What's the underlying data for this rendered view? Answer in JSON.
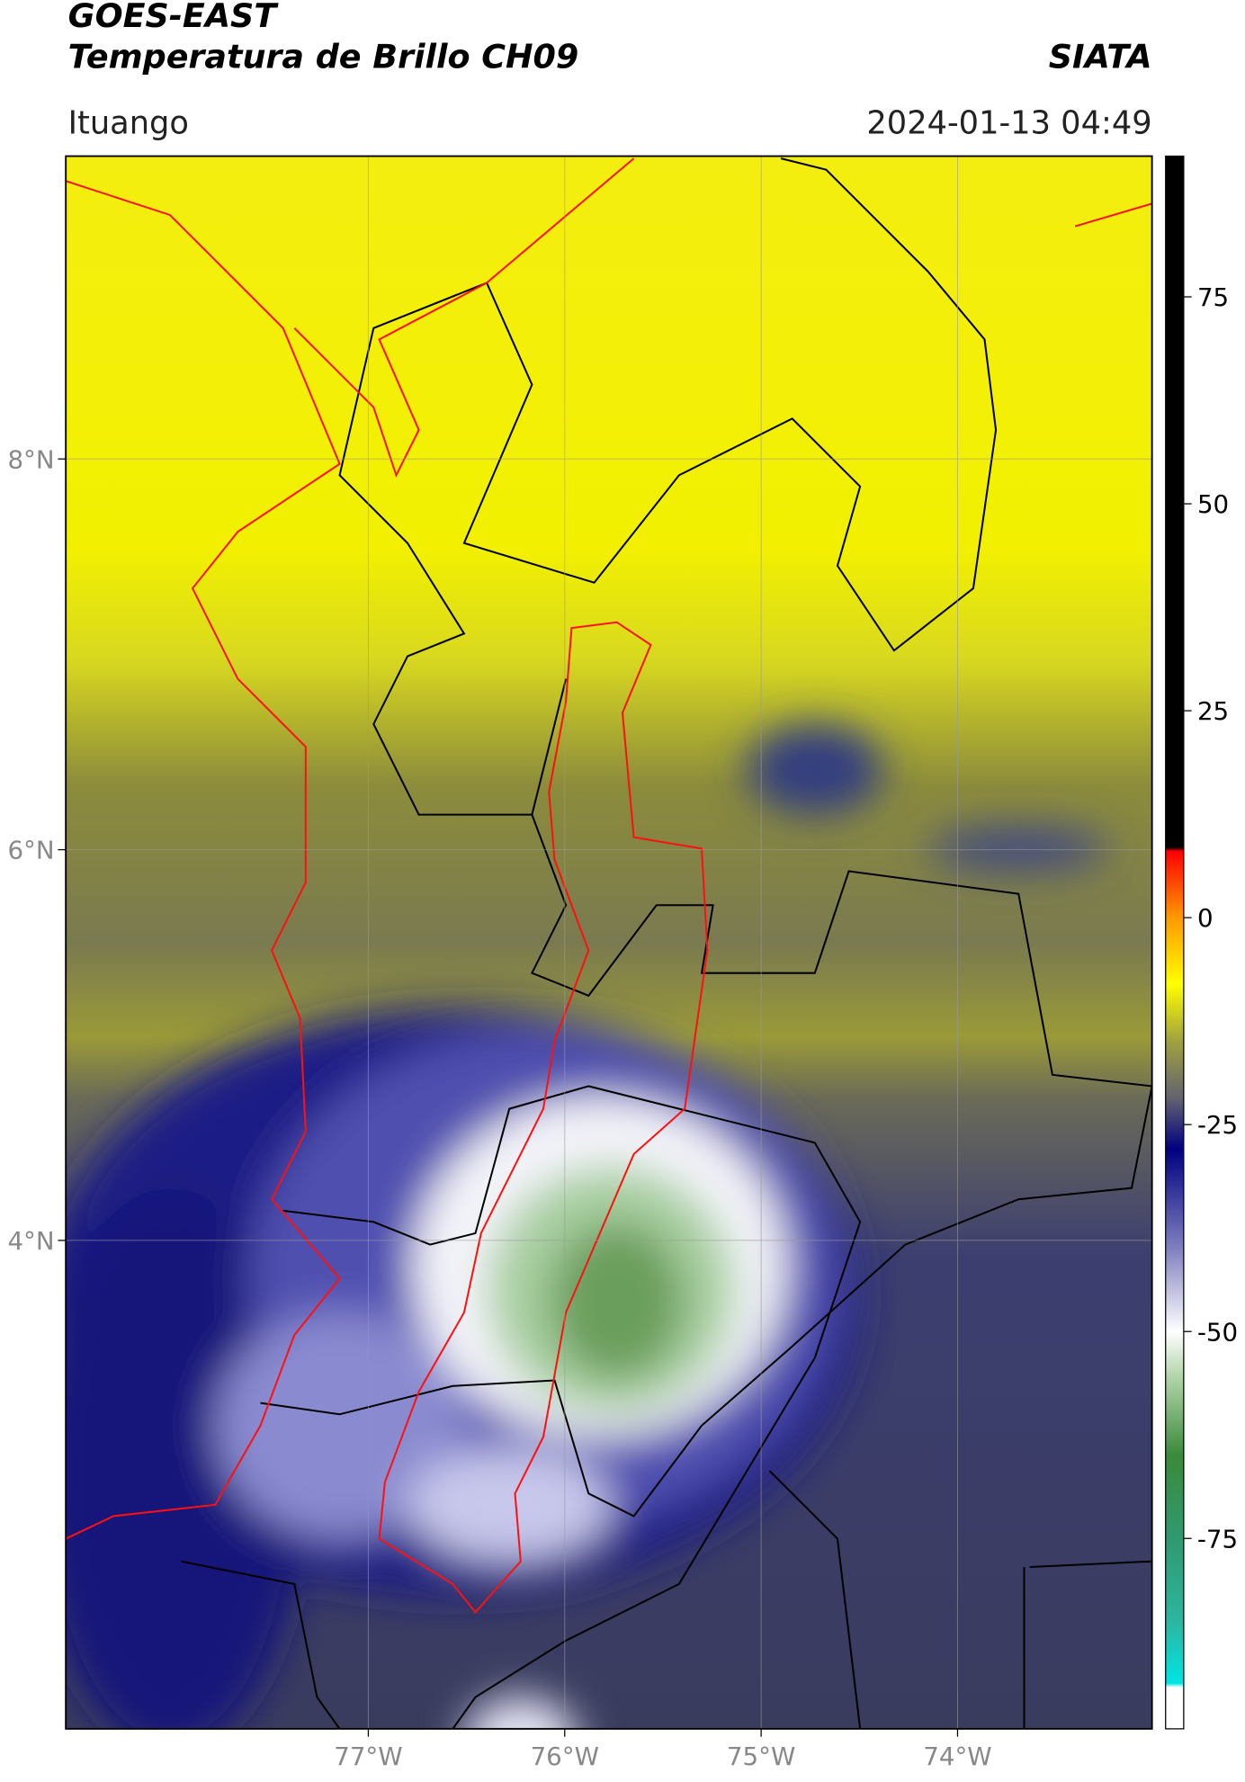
{
  "header": {
    "title": "GOES-EAST",
    "subtitle": "Temperatura de Brillo CH09",
    "brand": "SIATA",
    "location": "Ituango",
    "datetime": "2024-01-13 04:49"
  },
  "map": {
    "xlim": [
      -78.54,
      -73.01
    ],
    "ylim": [
      1.5,
      9.55
    ],
    "xticks": [
      {
        "value": -77,
        "label": "77°W"
      },
      {
        "value": -76,
        "label": "76°W"
      },
      {
        "value": -75,
        "label": "75°W"
      },
      {
        "value": -74,
        "label": "74°W"
      }
    ],
    "yticks": [
      {
        "value": 8,
        "label": "8°N"
      },
      {
        "value": 6,
        "label": "6°N"
      },
      {
        "value": 4,
        "label": "4°N"
      }
    ],
    "grid": true
  },
  "colorbar": {
    "ylim": [
      -98,
      92
    ],
    "yticks": [
      75,
      50,
      25,
      0,
      -25,
      -50,
      -75
    ],
    "colormap": [
      {
        "value": -98,
        "color": "#ffffff"
      },
      {
        "value": -93,
        "color": "#ffffff"
      },
      {
        "value": -92.5,
        "color": "#00e5e5"
      },
      {
        "value": -85,
        "color": "#2db5a0"
      },
      {
        "value": -75,
        "color": "#2f9a70"
      },
      {
        "value": -65,
        "color": "#3a8a3a"
      },
      {
        "value": -55,
        "color": "#b8d8b0"
      },
      {
        "value": -50,
        "color": "#ffffff"
      },
      {
        "value": -40,
        "color": "#8080c0"
      },
      {
        "value": -28,
        "color": "#000080"
      },
      {
        "value": -22,
        "color": "#606070"
      },
      {
        "value": -15,
        "color": "#a0a040"
      },
      {
        "value": -8,
        "color": "#ffff00"
      },
      {
        "value": 0,
        "color": "#ff9900"
      },
      {
        "value": 8,
        "color": "#ff0000"
      },
      {
        "value": 8.5,
        "color": "#000000"
      },
      {
        "value": 92,
        "color": "#000000"
      }
    ]
  }
}
